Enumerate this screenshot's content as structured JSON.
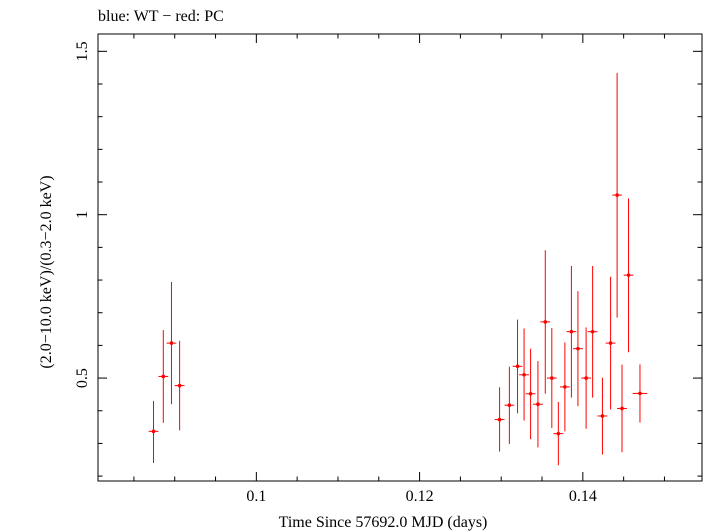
{
  "chart_data": {
    "type": "scatter",
    "title": "blue: WT − red: PC",
    "xlabel": "Time Since 57692.0 MJD (days)",
    "ylabel": "(2.0−10.0 keV)/(0.3−2.0 keV)",
    "xlim": [
      0.0806,
      0.1546
    ],
    "ylim": [
      0.185,
      1.553
    ],
    "xticks": [
      0.1,
      0.12,
      0.14
    ],
    "xtick_labels": [
      "0.1",
      "0.12",
      "0.14"
    ],
    "yticks": [
      0.5,
      1,
      1.5
    ],
    "ytick_labels": [
      "0.5",
      "1",
      "1.5"
    ],
    "grid": false,
    "series": [
      {
        "name": "PC",
        "color": "#ff0000",
        "points": [
          {
            "x": 0.0874,
            "xerr": 0.0006,
            "y": 0.337,
            "ylo": 0.24,
            "yhi": 0.43
          },
          {
            "x": 0.0886,
            "xerr": 0.0006,
            "y": 0.505,
            "ylo": 0.363,
            "yhi": 0.647
          },
          {
            "x": 0.0896,
            "xerr": 0.0006,
            "y": 0.607,
            "ylo": 0.42,
            "yhi": 0.794
          },
          {
            "x": 0.0906,
            "xerr": 0.0006,
            "y": 0.477,
            "ylo": 0.34,
            "yhi": 0.614
          },
          {
            "x": 0.1298,
            "xerr": 0.0006,
            "y": 0.373,
            "ylo": 0.275,
            "yhi": 0.472
          },
          {
            "x": 0.131,
            "xerr": 0.0006,
            "y": 0.417,
            "ylo": 0.298,
            "yhi": 0.535
          },
          {
            "x": 0.132,
            "xerr": 0.0006,
            "y": 0.536,
            "ylo": 0.392,
            "yhi": 0.679
          },
          {
            "x": 0.1328,
            "xerr": 0.0006,
            "y": 0.51,
            "ylo": 0.37,
            "yhi": 0.652
          },
          {
            "x": 0.1336,
            "xerr": 0.0006,
            "y": 0.452,
            "ylo": 0.313,
            "yhi": 0.59
          },
          {
            "x": 0.1345,
            "xerr": 0.0006,
            "y": 0.42,
            "ylo": 0.288,
            "yhi": 0.552
          },
          {
            "x": 0.1354,
            "xerr": 0.0006,
            "y": 0.672,
            "ylo": 0.452,
            "yhi": 0.891
          },
          {
            "x": 0.1362,
            "xerr": 0.0006,
            "y": 0.5,
            "ylo": 0.347,
            "yhi": 0.653
          },
          {
            "x": 0.137,
            "xerr": 0.0006,
            "y": 0.33,
            "ylo": 0.233,
            "yhi": 0.427
          },
          {
            "x": 0.1378,
            "xerr": 0.0006,
            "y": 0.473,
            "ylo": 0.337,
            "yhi": 0.609
          },
          {
            "x": 0.1386,
            "xerr": 0.0006,
            "y": 0.642,
            "ylo": 0.44,
            "yhi": 0.843
          },
          {
            "x": 0.1394,
            "xerr": 0.0006,
            "y": 0.59,
            "ylo": 0.414,
            "yhi": 0.766
          },
          {
            "x": 0.1404,
            "xerr": 0.0006,
            "y": 0.5,
            "ylo": 0.345,
            "yhi": 0.655
          },
          {
            "x": 0.1412,
            "xerr": 0.0006,
            "y": 0.642,
            "ylo": 0.44,
            "yhi": 0.843
          },
          {
            "x": 0.1424,
            "xerr": 0.0006,
            "y": 0.384,
            "ylo": 0.266,
            "yhi": 0.501
          },
          {
            "x": 0.1434,
            "xerr": 0.0006,
            "y": 0.607,
            "ylo": 0.404,
            "yhi": 0.81
          },
          {
            "x": 0.1442,
            "xerr": 0.0006,
            "y": 1.06,
            "ylo": 0.685,
            "yhi": 1.434
          },
          {
            "x": 0.1448,
            "xerr": 0.0006,
            "y": 0.407,
            "ylo": 0.273,
            "yhi": 0.541
          },
          {
            "x": 0.1456,
            "xerr": 0.0006,
            "y": 0.815,
            "ylo": 0.579,
            "yhi": 1.05
          },
          {
            "x": 0.147,
            "xerr": 0.0009,
            "y": 0.453,
            "ylo": 0.364,
            "yhi": 0.542
          }
        ]
      }
    ]
  }
}
